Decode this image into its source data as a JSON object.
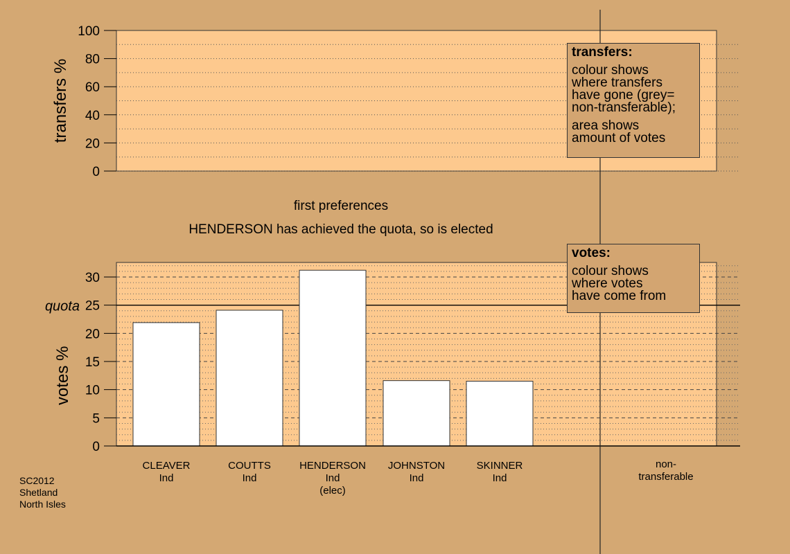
{
  "chart_data": [
    {
      "type": "bar",
      "ylabel": "transfers %",
      "ylim": [
        0,
        100
      ],
      "yticks": [
        0,
        20,
        40,
        60,
        80,
        100
      ],
      "values": [],
      "legend": {
        "title": "transfers:",
        "lines": [
          "colour shows",
          "where transfers",
          "have gone (grey=",
          "non-transferable);"
        ],
        "lines2": [
          "area shows",
          "amount of votes"
        ]
      }
    },
    {
      "type": "bar",
      "title": "first preferences",
      "subtitle": "HENDERSON has achieved the quota, so is elected",
      "ylabel": "votes %",
      "ylim": [
        0,
        33
      ],
      "yticks": [
        0,
        5,
        10,
        15,
        20,
        25,
        30
      ],
      "quota": 25,
      "quota_label": "quota",
      "categories": [
        "CLEAVER",
        "COUTTS",
        "HENDERSON",
        "JOHNSTON",
        "SKINNER"
      ],
      "parties": [
        "Ind",
        "Ind",
        "Ind",
        "Ind",
        "Ind"
      ],
      "notes": [
        "",
        "",
        "(elec)",
        "",
        ""
      ],
      "values": [
        21.9,
        24.1,
        31.2,
        11.6,
        11.5
      ],
      "bar_color": "#ffffff",
      "extra_category": "non-\ntransferable",
      "legend": {
        "title": "votes:",
        "lines": [
          "colour shows",
          "where votes",
          "have come from"
        ]
      }
    }
  ],
  "corner": [
    "SC2012",
    "Shetland",
    "North Isles"
  ],
  "colors": {
    "background": "#d4a873",
    "plot_fill": "#fdc98e",
    "bar": "#ffffff"
  }
}
